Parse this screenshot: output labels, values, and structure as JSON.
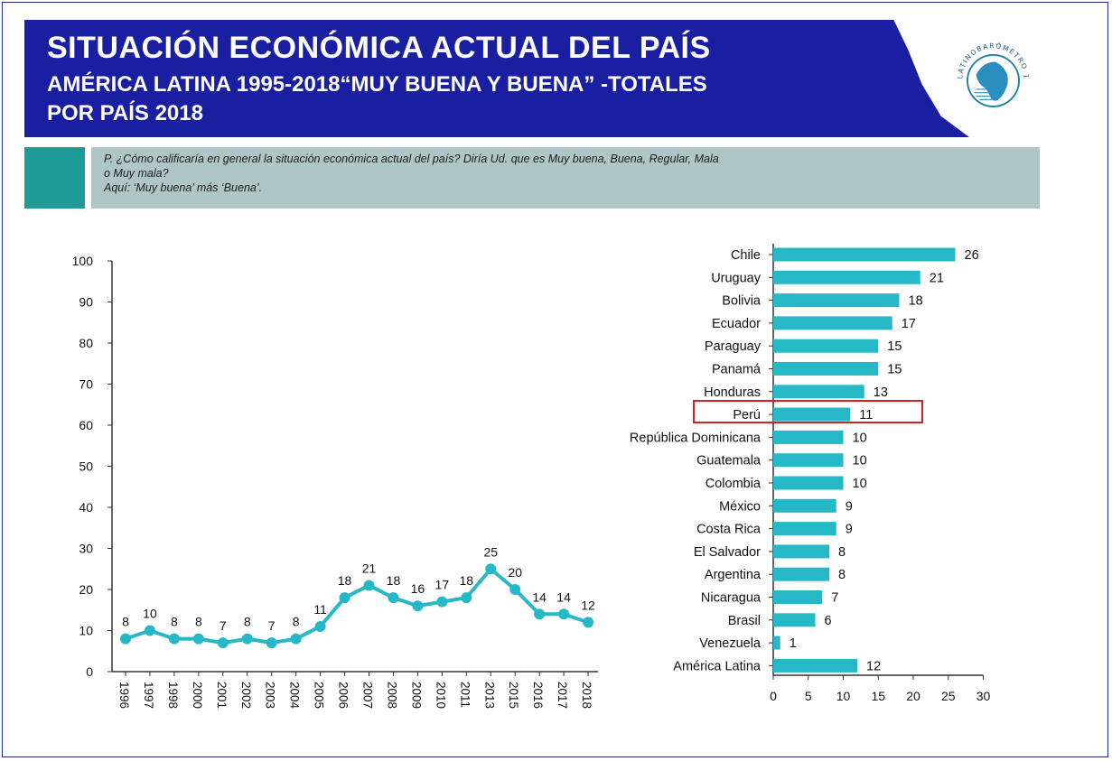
{
  "header": {
    "title": "SITUACIÓN ECONÓMICA ACTUAL DEL PAÍS",
    "subtitle_line1": "AMÉRICA LATINA 1995-2018“MUY BUENA Y BUENA” -TOTALES",
    "subtitle_line2": "POR PAÍS 2018",
    "logo_text": "LATINOBARÓMETRO 1995 · 2015"
  },
  "question": {
    "line1": "P. ¿Cómo calificaría en general la situación económica actual del país? Diría Ud. que es Muy buena, Buena, Regular, Mala",
    "line2": "o Muy mala?",
    "line3": "Aquí: ‘Muy buena’ más ‘Buena’."
  },
  "colors": {
    "banner": "#1a1fa2",
    "teal": "#27b8c7",
    "question_bg": "#afc6c7",
    "question_accent": "#1f9b97",
    "highlight": "#d42020"
  },
  "chart_data": [
    {
      "type": "line",
      "title": "",
      "xlabel": "",
      "ylabel": "",
      "ylim": [
        0,
        100
      ],
      "yticks": [
        0,
        10,
        20,
        30,
        40,
        50,
        60,
        70,
        80,
        90,
        100
      ],
      "categories": [
        "1996",
        "1997",
        "1998",
        "2000",
        "2001",
        "2002",
        "2003",
        "2004",
        "2005",
        "2006",
        "2007",
        "2008",
        "2009",
        "2010",
        "2011",
        "2013",
        "2015",
        "2016",
        "2017",
        "2018"
      ],
      "values": [
        8,
        10,
        8,
        8,
        7,
        8,
        7,
        8,
        11,
        18,
        21,
        18,
        16,
        17,
        18,
        25,
        20,
        14,
        14,
        12
      ],
      "grid": false,
      "legend": "none"
    },
    {
      "type": "bar",
      "orientation": "horizontal",
      "title": "",
      "xlabel": "",
      "ylabel": "",
      "xlim": [
        0,
        30
      ],
      "xticks": [
        0,
        5,
        10,
        15,
        20,
        25,
        30
      ],
      "categories": [
        "Chile",
        "Uruguay",
        "Bolivia",
        "Ecuador",
        "Paraguay",
        "Panamá",
        "Honduras",
        "Perú",
        "República Dominicana",
        "Guatemala",
        "Colombia",
        "México",
        "Costa Rica",
        "El Salvador",
        "Argentina",
        "Nicaragua",
        "Brasil",
        "Venezuela",
        "América Latina"
      ],
      "values": [
        26,
        21,
        18,
        17,
        15,
        15,
        13,
        11,
        10,
        10,
        10,
        9,
        9,
        8,
        8,
        7,
        6,
        1,
        12
      ],
      "highlighted": "Perú",
      "grid": false,
      "legend": "none"
    }
  ]
}
